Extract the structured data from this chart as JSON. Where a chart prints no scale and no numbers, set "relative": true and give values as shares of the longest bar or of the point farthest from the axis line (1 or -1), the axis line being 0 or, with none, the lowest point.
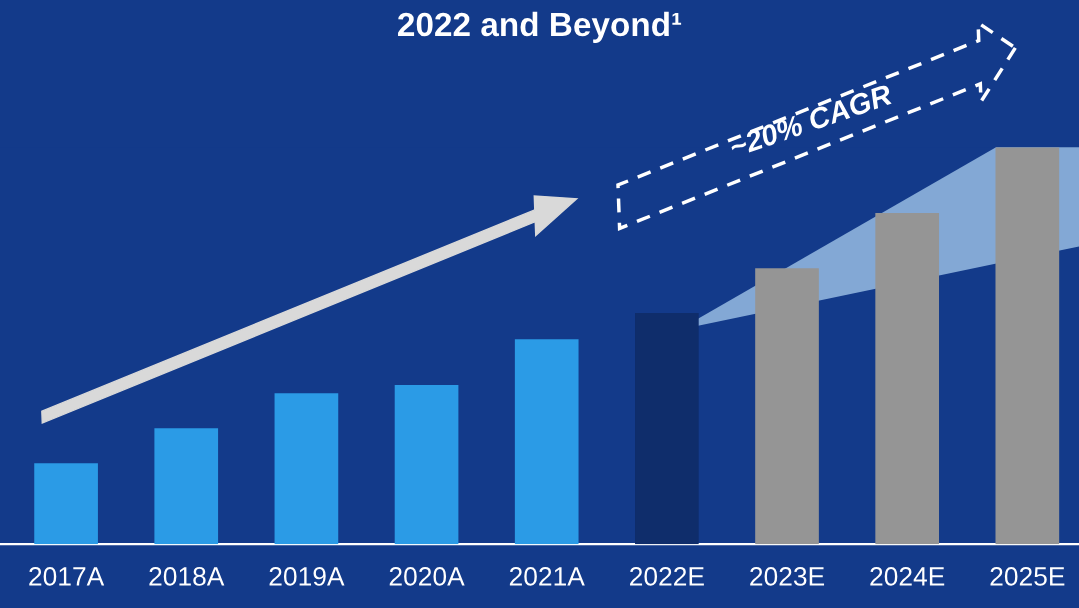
{
  "chart_data": {
    "type": "bar",
    "title": "2022 and Beyond¹",
    "categories": [
      "2017A",
      "2018A",
      "2019A",
      "2020A",
      "2021A",
      "2022E",
      "2023E",
      "2024E",
      "2025E"
    ],
    "values": [
      0.204,
      0.292,
      0.38,
      0.401,
      0.516,
      0.582,
      0.695,
      0.834,
      1
    ],
    "colors": [
      "#2b9be6",
      "#2b9be6",
      "#2b9be6",
      "#2b9be6",
      "#2b9be6",
      "#0f2d6b",
      "#959595",
      "#959595",
      "#959595"
    ],
    "relative": true,
    "annotations": [
      "~20% CAGR"
    ]
  }
}
